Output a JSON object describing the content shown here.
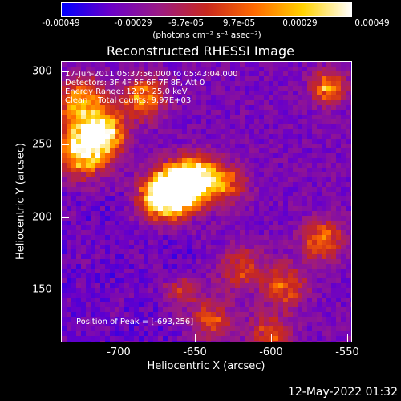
{
  "colorbar": {
    "ticks": [
      "-0.00049",
      "-0.00029",
      "-9.7e-05",
      "9.7e-05",
      "0.00029",
      "0.00049"
    ],
    "unit_label": "(photons cm⁻² s⁻¹ asec⁻²)",
    "colors": [
      "#0000ff",
      "#6a00c8",
      "#9a1a86",
      "#c8281e",
      "#ff6a00",
      "#ffd200",
      "#ffffff"
    ]
  },
  "title": "Reconstructed RHESSI Image",
  "info": {
    "time_range": "17-Jun-2011 05:37:56.000 to 05:43:04.000",
    "detectors": "Detectors: 3F 4F 5F 6F 7F 8F, Att 0",
    "energy": "Energy Range: 12.0 - 25.0 keV",
    "clean": "Clean    Total counts: 9.97E+03"
  },
  "peak": "Position of Peak = [-693,256]",
  "x_axis": {
    "label": "Heliocentric X (arcsec)",
    "ticks": [
      "-700",
      "-650",
      "-600",
      "-550"
    ],
    "range": [
      -737,
      -546
    ]
  },
  "y_axis": {
    "label": "Heliocentric Y (arcsec)",
    "ticks": [
      "150",
      "200",
      "250",
      "300"
    ],
    "range": [
      113,
      307
    ]
  },
  "datestamp": "12-May-2022 01:32"
}
